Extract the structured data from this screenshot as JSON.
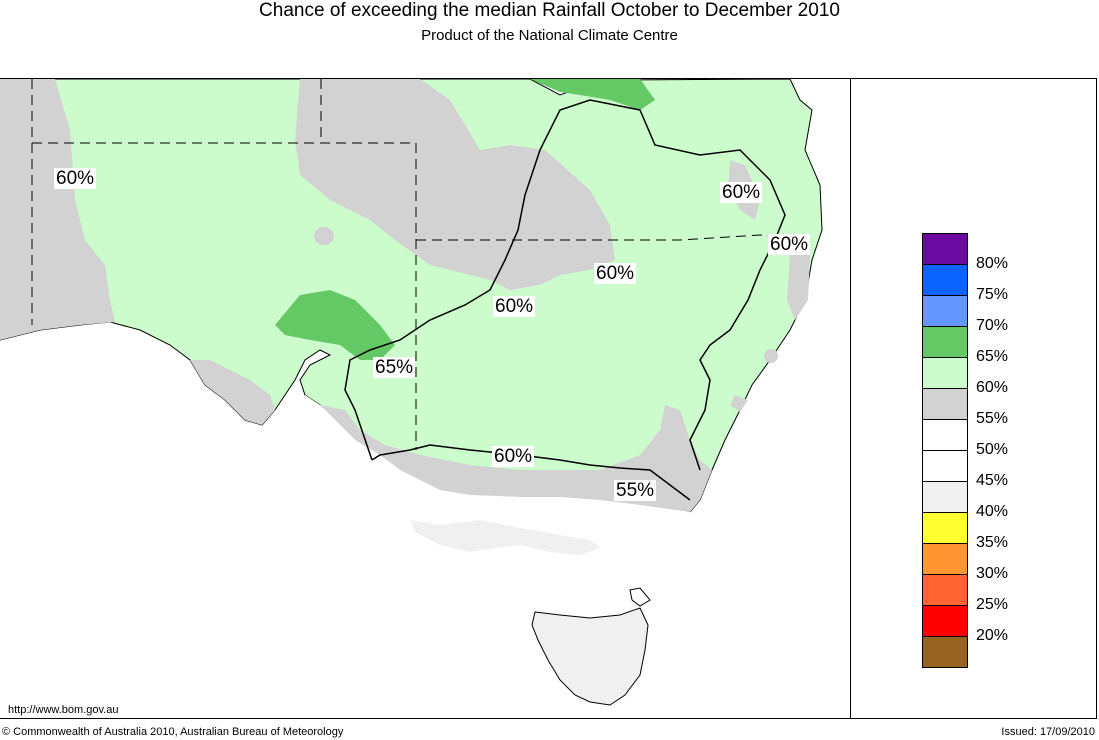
{
  "header": {
    "title": "Chance of exceeding the median Rainfall October to December 2010",
    "subtitle": "Product of the National Climate Centre"
  },
  "map": {
    "region": "South-eastern Australia",
    "labels": [
      "60%",
      "60%",
      "60%",
      "60%",
      "60%",
      "65%",
      "60%",
      "55%"
    ]
  },
  "legend": {
    "items": [
      {
        "label": "80%",
        "color": "#6a0aa0"
      },
      {
        "label": "75%",
        "color": "#0a64ff"
      },
      {
        "label": "70%",
        "color": "#6496ff"
      },
      {
        "label": "65%",
        "color": "#64c864"
      },
      {
        "label": "60%",
        "color": "#ccfccc"
      },
      {
        "label": "55%",
        "color": "#d2d2d2"
      },
      {
        "label": "50%",
        "color": "#ffffff"
      },
      {
        "label": "45%",
        "color": "#ffffff"
      },
      {
        "label": "40%",
        "color": "#f0f0f0"
      },
      {
        "label": "35%",
        "color": "#ffff32"
      },
      {
        "label": "30%",
        "color": "#ff9632"
      },
      {
        "label": "25%",
        "color": "#ff6432"
      },
      {
        "label": "20%",
        "color": "#ff0000"
      },
      {
        "label": "",
        "color": "#966420"
      }
    ]
  },
  "footer": {
    "url": "http://www.bom.gov.au",
    "copyright": "© Commonwealth of Australia 2010, Australian Bureau of Meteorology",
    "issued": "Issued: 17/09/2010"
  },
  "colors": {
    "green_light": "#ccfccc",
    "green_mid": "#64c864",
    "grey": "#d2d2d2",
    "light_grey": "#f0f0f0"
  }
}
